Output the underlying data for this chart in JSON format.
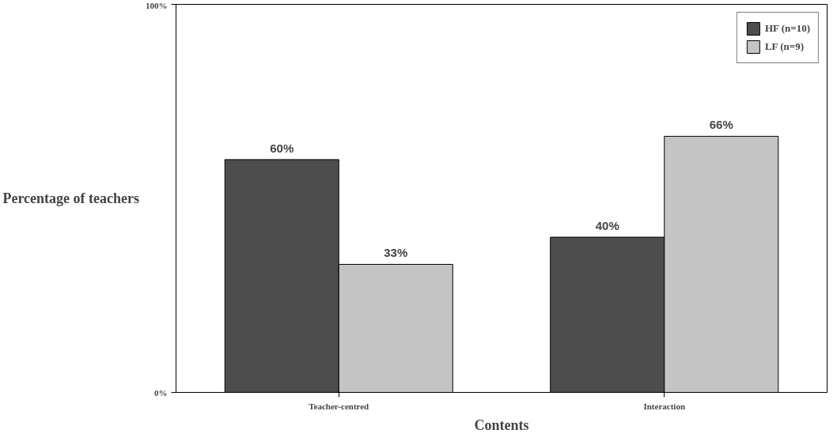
{
  "chart_data": {
    "type": "bar",
    "xlabel": "Contents",
    "ylabel": "Percentage of teachers",
    "categories": [
      "Teacher-centred",
      "Interaction"
    ],
    "series": [
      {
        "name": "HF (n=10)",
        "color": "#4d4d4d",
        "values": [
          60,
          40
        ],
        "value_labels": [
          "60%",
          "40%"
        ]
      },
      {
        "name": "LF (n=9)",
        "color": "#c4c4c4",
        "values": [
          33,
          66
        ],
        "value_labels": [
          "33%",
          "66%"
        ]
      }
    ],
    "ylim": [
      0,
      100
    ],
    "yticks": [
      {
        "value": 0,
        "label": "0%"
      },
      {
        "value": 100,
        "label": "100%"
      }
    ],
    "grid": false,
    "legend": "top right"
  }
}
